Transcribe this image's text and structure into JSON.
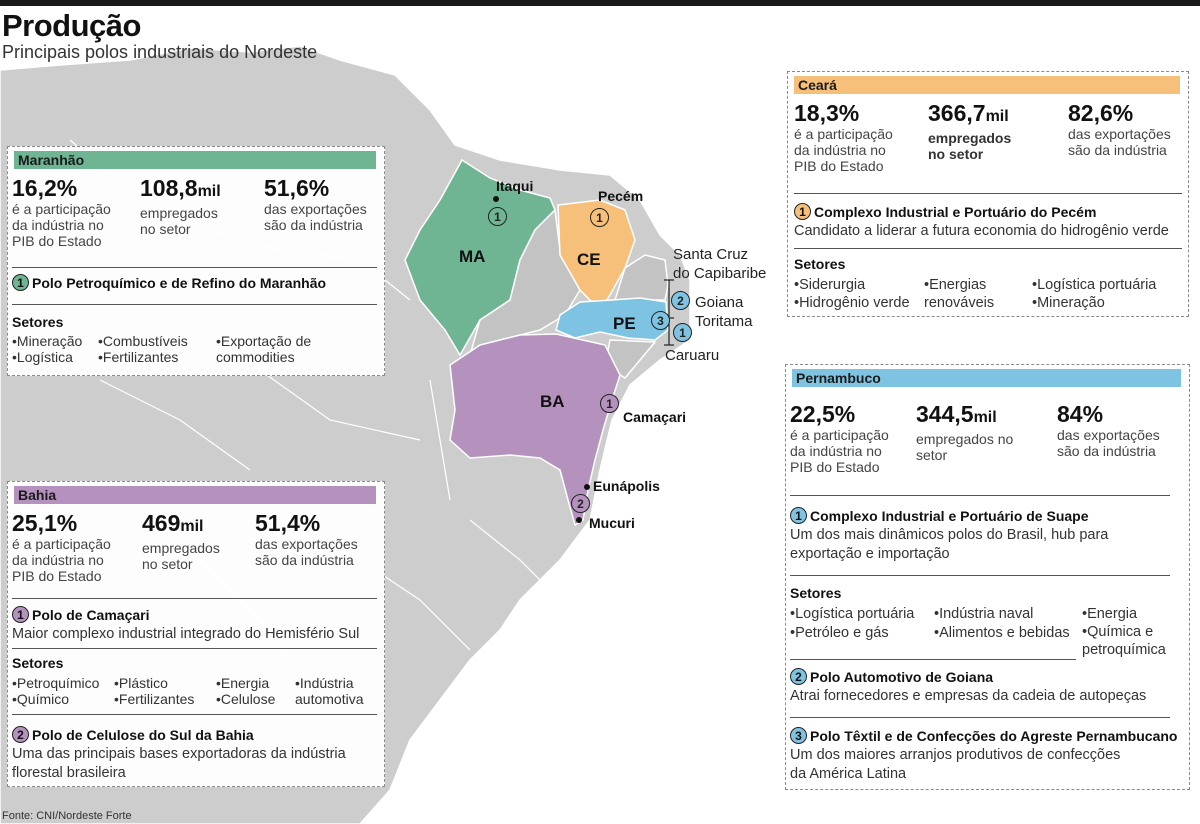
{
  "header": {
    "title": "Produção",
    "subtitle": "Principais polos industriais do Nordeste"
  },
  "source": "Fonte: CNI/Nordeste Forte",
  "colors": {
    "maranhao": "#6fb593",
    "ceara": "#f6c07a",
    "pernambuco": "#7ec4e2",
    "bahia": "#b592bd",
    "land": "#cdcdcd",
    "sea": "#ffffff"
  },
  "map": {
    "states": [
      {
        "code": "MA",
        "color": "#6fb593"
      },
      {
        "code": "CE",
        "color": "#f6c07a"
      },
      {
        "code": "PE",
        "color": "#7ec4e2"
      },
      {
        "code": "BA",
        "color": "#b592bd"
      }
    ],
    "places": {
      "itaqui": "Itaqui",
      "pecem": "Pecém",
      "santa_cruz": "Santa Cruz\ndo Capibaribe",
      "goiana": "Goiana",
      "toritama": "Toritama",
      "caruaru": "Caruaru",
      "camacari": "Camaçari",
      "eunapolis": "Eunápolis",
      "mucuri": "Mucuri"
    },
    "badges": {
      "b1": "1",
      "b2": "2",
      "b3": "3"
    }
  },
  "maranhao": {
    "name": "Maranhão",
    "stats": [
      {
        "value": "16,2%",
        "unit": "",
        "desc": "é a participação\nda indústria no\nPIB do Estado"
      },
      {
        "value": "108,8",
        "unit": "mil",
        "desc": "empregados\nno setor"
      },
      {
        "value": "51,6%",
        "unit": "",
        "desc": "das exportações\nsão da indústria"
      }
    ],
    "polo": {
      "number": "1",
      "title": "Polo Petroquímico e de Refino do Maranhão"
    },
    "setores_label": "Setores",
    "setores": [
      "•Mineração\n•Logística",
      "•Combustíveis\n•Fertilizantes",
      "•Exportação de\n  commodities"
    ]
  },
  "ceara": {
    "name": "Ceará",
    "stats": [
      {
        "value": "18,3%",
        "unit": "",
        "desc": "é a participação\nda indústria no\nPIB do Estado"
      },
      {
        "value": "366,7",
        "unit": "mil",
        "desc": "empregados\nno setor"
      },
      {
        "value": "82,6%",
        "unit": "",
        "desc": "das exportações\nsão da indústria"
      }
    ],
    "polo": {
      "number": "1",
      "title": "Complexo Industrial e Portuário do Pecém",
      "desc": "Candidato a liderar a futura economia do hidrogênio verde"
    },
    "setores_label": "Setores",
    "setores": [
      "•Siderurgia\n•Hidrogênio verde",
      "•Energias\n  renováveis",
      "•Logística portuária\n•Mineração"
    ]
  },
  "pernambuco": {
    "name": "Pernambuco",
    "stats": [
      {
        "value": "22,5%",
        "unit": "",
        "desc": "é a participação\nda indústria no\nPIB do Estado"
      },
      {
        "value": "344,5",
        "unit": "mil",
        "desc": "empregados no\nsetor"
      },
      {
        "value": "84%",
        "unit": "",
        "desc": "das exportações\nsão da indústria"
      }
    ],
    "polo1": {
      "number": "1",
      "title": "Complexo Industrial e Portuário de Suape",
      "desc": "Um dos mais dinâmicos polos do Brasil, hub para\nexportação e importação"
    },
    "setores_label": "Setores",
    "setores": [
      "•Logística portuária\n•Petróleo e gás",
      "•Indústria naval\n•Alimentos e bebidas",
      "•Energia\n•Química e\n  petroquímica"
    ],
    "polo2": {
      "number": "2",
      "title": "Polo Automotivo de Goiana",
      "desc": "Atrai fornecedores e empresas da cadeia de autopeças"
    },
    "polo3": {
      "number": "3",
      "title": "Polo Têxtil e de Confecções do Agreste Pernambucano",
      "desc": "Um dos maiores arranjos produtivos de confecções\nda América Latina"
    }
  },
  "bahia": {
    "name": "Bahia",
    "stats": [
      {
        "value": "25,1%",
        "unit": "",
        "desc": "é a participação\nda indústria no\nPIB do Estado"
      },
      {
        "value": "469",
        "unit": "mil",
        "desc": "empregados\nno setor"
      },
      {
        "value": "51,4%",
        "unit": "",
        "desc": "das exportações\nsão da indústria"
      }
    ],
    "polo1": {
      "number": "1",
      "title": "Polo de Camaçari",
      "desc": "Maior complexo industrial integrado do Hemisfério Sul"
    },
    "setores_label": "Setores",
    "setores": [
      "•Petroquímico\n•Químico",
      "•Plástico\n•Fertilizantes",
      "•Energia\n•Celulose",
      "•Indústria\n  automotiva"
    ],
    "polo2": {
      "number": "2",
      "title": "Polo de Celulose do Sul da Bahia",
      "desc": "Uma das principais bases exportadoras da indústria\nflorestal brasileira"
    }
  }
}
